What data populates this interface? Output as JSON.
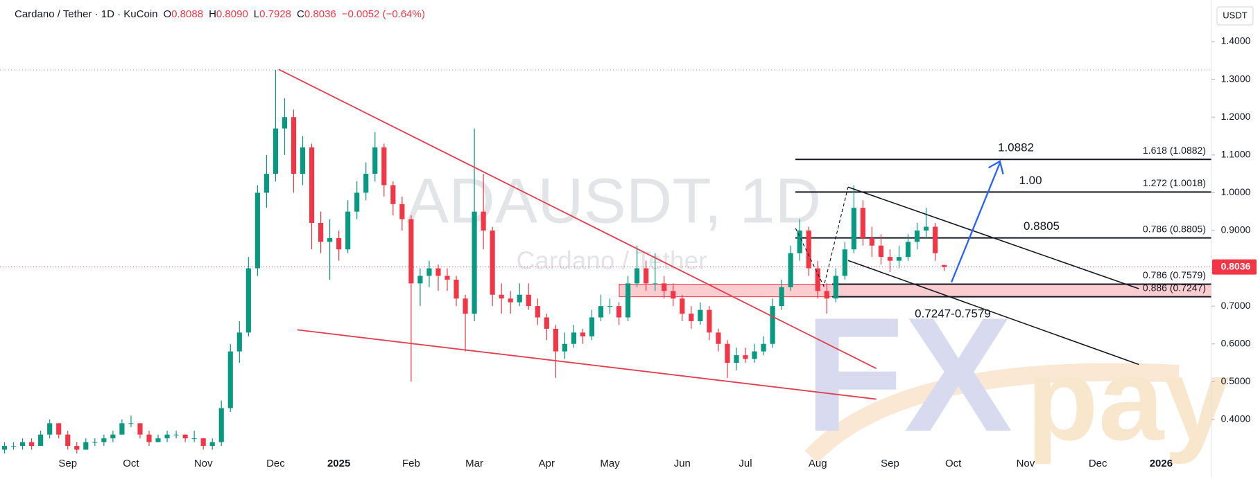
{
  "header": {
    "symbol": "Cardano / Tether · 1D · KuCoin",
    "ohlc": [
      {
        "key": "O",
        "value": "0.8088"
      },
      {
        "key": "H",
        "value": "0.8090"
      },
      {
        "key": "L",
        "value": "0.7928"
      },
      {
        "key": "C",
        "value": "0.8036"
      }
    ],
    "change": "−0.0052 (−0.64%)"
  },
  "chart_data": {
    "type": "candlestick",
    "currency": "USDT",
    "watermark": {
      "title": "ADAUSDT, 1D",
      "subtitle": "Cardano / Tether"
    },
    "logo": {
      "fx": "FX",
      "pay": "pay"
    },
    "up_color": "#089981",
    "down_color": "#f23645",
    "ylim": [
      0.31,
      1.51
    ],
    "yticks": [
      {
        "value": 0.4,
        "label": "0.4000"
      },
      {
        "value": 0.5,
        "label": "0.5000"
      },
      {
        "value": 0.6,
        "label": "0.6000"
      },
      {
        "value": 0.7,
        "label": "0.7000"
      },
      {
        "value": 0.8,
        "label": "0.8000"
      },
      {
        "value": 0.9,
        "label": "0.9000"
      },
      {
        "value": 1.0,
        "label": "1.0000"
      },
      {
        "value": 1.1,
        "label": "1.1000"
      },
      {
        "value": 1.2,
        "label": "1.2000"
      },
      {
        "value": 1.3,
        "label": "1.3000"
      },
      {
        "value": 1.4,
        "label": "1.4000"
      }
    ],
    "last_price": {
      "value": 0.8036,
      "label": "0.8036"
    },
    "fib_levels": [
      {
        "value": 1.0882,
        "label": "1.618 (1.0882)"
      },
      {
        "value": 1.0018,
        "label": "1.272 (1.0018)"
      },
      {
        "value": 0.8805,
        "label": "0.786 (0.8805)"
      },
      {
        "value": 0.7579,
        "label": "0.786 (0.7579)"
      },
      {
        "value": 0.7247,
        "label": "0.886 (0.7247)"
      }
    ],
    "targets": [
      {
        "value": 1.0882,
        "label": "1.0882"
      },
      {
        "value": 1.0018,
        "label": "1.00"
      },
      {
        "value": 0.8805,
        "label": "0.8805"
      }
    ],
    "zone_label": "0.7247-0.7579",
    "categories": [
      null,
      null,
      null,
      null,
      null,
      null,
      null,
      "Sep",
      null,
      null,
      null,
      null,
      null,
      null,
      "Oct",
      null,
      null,
      null,
      null,
      null,
      null,
      null,
      "Nov",
      null,
      null,
      null,
      null,
      null,
      null,
      null,
      "Dec",
      null,
      null,
      null,
      null,
      null,
      null,
      "2025",
      null,
      null,
      null,
      null,
      null,
      null,
      null,
      "Feb",
      null,
      null,
      null,
      null,
      null,
      null,
      "Mar",
      null,
      null,
      null,
      null,
      null,
      null,
      null,
      "Apr",
      null,
      null,
      null,
      null,
      null,
      null,
      "May",
      null,
      null,
      null,
      null,
      null,
      null,
      null,
      "Jun",
      null,
      null,
      null,
      null,
      null,
      null,
      "Jul",
      null,
      null,
      null,
      null,
      null,
      null,
      null,
      "Aug",
      null,
      null,
      null,
      null,
      null,
      null,
      null,
      "Sep",
      null,
      null,
      null,
      null,
      null,
      null,
      "Oct",
      null,
      null,
      null,
      null,
      null,
      null,
      null,
      "Nov",
      null,
      null,
      null,
      null,
      null,
      null,
      null,
      "Dec",
      null,
      null,
      null,
      null,
      null,
      null,
      "2026",
      null,
      null,
      null
    ],
    "open": [
      0.32,
      0.33,
      0.33,
      0.34,
      0.33,
      0.36,
      0.39,
      0.36,
      0.33,
      0.32,
      0.34,
      0.34,
      0.35,
      0.36,
      0.39,
      0.39,
      0.36,
      0.34,
      0.35,
      0.36,
      0.36,
      0.35,
      0.35,
      0.33,
      0.34,
      0.43,
      0.58,
      0.63,
      0.8,
      1.0,
      1.05,
      1.17,
      1.2,
      1.05,
      1.12,
      0.92,
      0.87,
      0.88,
      0.85,
      0.95,
      1.0,
      1.05,
      1.12,
      1.02,
      0.97,
      0.93,
      0.76,
      0.78,
      0.8,
      0.78,
      0.77,
      0.72,
      0.68,
      0.95,
      0.9,
      0.73,
      0.72,
      0.71,
      0.73,
      0.7,
      0.67,
      0.64,
      0.58,
      0.6,
      0.63,
      0.62,
      0.67,
      0.7,
      0.7,
      0.67,
      0.76,
      0.8,
      0.76,
      0.76,
      0.74,
      0.72,
      0.68,
      0.66,
      0.69,
      0.63,
      0.6,
      0.55,
      0.57,
      0.56,
      0.58,
      0.6,
      0.7,
      0.75,
      0.84,
      0.9,
      0.8,
      0.74,
      0.72,
      0.78,
      0.85,
      0.96,
      0.88,
      0.86,
      0.83,
      0.82,
      0.83,
      0.87,
      0.9,
      0.91,
      0.8088,
      null,
      null,
      null,
      null,
      null,
      null,
      null,
      null,
      null,
      null,
      null,
      null,
      null,
      null,
      null,
      null,
      null,
      null,
      null,
      null,
      null,
      null,
      null,
      null,
      null,
      null,
      null
    ],
    "high": [
      0.34,
      0.34,
      0.35,
      0.35,
      0.37,
      0.4,
      0.39,
      0.37,
      0.34,
      0.35,
      0.35,
      0.36,
      0.37,
      0.4,
      0.41,
      0.39,
      0.37,
      0.36,
      0.37,
      0.37,
      0.36,
      0.37,
      0.35,
      0.35,
      0.45,
      0.6,
      0.66,
      0.83,
      1.02,
      1.1,
      1.325,
      1.25,
      1.22,
      1.15,
      1.13,
      0.95,
      0.93,
      0.9,
      0.98,
      1.03,
      1.08,
      1.16,
      1.13,
      1.03,
      0.99,
      0.94,
      0.8,
      0.82,
      0.81,
      0.8,
      0.78,
      0.73,
      1.17,
      1.05,
      0.91,
      0.76,
      0.74,
      0.76,
      0.76,
      0.72,
      0.68,
      0.65,
      0.63,
      0.65,
      0.64,
      0.69,
      0.73,
      0.72,
      0.71,
      0.78,
      0.86,
      0.82,
      0.84,
      0.78,
      0.76,
      0.73,
      0.7,
      0.71,
      0.7,
      0.64,
      0.61,
      0.59,
      0.59,
      0.6,
      0.62,
      0.72,
      0.77,
      0.86,
      0.93,
      0.91,
      0.82,
      0.76,
      0.8,
      0.87,
      1.02,
      0.98,
      0.91,
      0.89,
      0.85,
      0.86,
      0.89,
      0.92,
      0.96,
      0.92,
      0.809,
      null,
      null,
      null,
      null,
      null,
      null,
      null,
      null,
      null,
      null,
      null,
      null,
      null,
      null,
      null,
      null,
      null,
      null,
      null,
      null,
      null,
      null,
      null,
      null,
      null,
      null,
      null
    ],
    "low": [
      0.31,
      0.32,
      0.32,
      0.32,
      0.33,
      0.35,
      0.35,
      0.32,
      0.31,
      0.32,
      0.33,
      0.33,
      0.34,
      0.36,
      0.38,
      0.35,
      0.33,
      0.34,
      0.34,
      0.35,
      0.34,
      0.34,
      0.32,
      0.32,
      0.33,
      0.42,
      0.55,
      0.62,
      0.78,
      0.96,
      1.03,
      1.1,
      1.0,
      1.02,
      0.85,
      0.84,
      0.77,
      0.82,
      0.84,
      0.93,
      0.98,
      1.03,
      0.99,
      0.94,
      0.9,
      0.5,
      0.7,
      0.75,
      0.74,
      0.74,
      0.7,
      0.58,
      0.66,
      0.85,
      0.7,
      0.68,
      0.68,
      0.7,
      0.69,
      0.65,
      0.61,
      0.51,
      0.56,
      0.59,
      0.6,
      0.61,
      0.66,
      0.68,
      0.65,
      0.66,
      0.75,
      0.74,
      0.74,
      0.72,
      0.7,
      0.66,
      0.64,
      0.65,
      0.61,
      0.58,
      0.51,
      0.53,
      0.55,
      0.55,
      0.57,
      0.59,
      0.69,
      0.74,
      0.82,
      0.78,
      0.72,
      0.68,
      0.71,
      0.77,
      0.84,
      0.86,
      0.83,
      0.81,
      0.79,
      0.8,
      0.82,
      0.85,
      0.88,
      0.82,
      0.7928,
      null,
      null,
      null,
      null,
      null,
      null,
      null,
      null,
      null,
      null,
      null,
      null,
      null,
      null,
      null,
      null,
      null,
      null,
      null,
      null,
      null,
      null,
      null,
      null,
      null,
      null,
      null
    ],
    "close": [
      0.33,
      0.33,
      0.34,
      0.33,
      0.36,
      0.39,
      0.36,
      0.33,
      0.32,
      0.34,
      0.34,
      0.35,
      0.36,
      0.39,
      0.39,
      0.36,
      0.34,
      0.35,
      0.36,
      0.36,
      0.35,
      0.35,
      0.33,
      0.34,
      0.43,
      0.58,
      0.63,
      0.8,
      1.0,
      1.05,
      1.17,
      1.2,
      1.05,
      1.12,
      0.92,
      0.87,
      0.88,
      0.85,
      0.95,
      1.0,
      1.05,
      1.12,
      1.02,
      0.97,
      0.93,
      0.76,
      0.78,
      0.8,
      0.78,
      0.77,
      0.72,
      0.68,
      0.95,
      0.9,
      0.73,
      0.72,
      0.71,
      0.73,
      0.7,
      0.67,
      0.64,
      0.58,
      0.6,
      0.63,
      0.62,
      0.67,
      0.7,
      0.7,
      0.67,
      0.76,
      0.8,
      0.76,
      0.76,
      0.74,
      0.72,
      0.68,
      0.66,
      0.69,
      0.63,
      0.6,
      0.55,
      0.57,
      0.56,
      0.58,
      0.6,
      0.7,
      0.75,
      0.84,
      0.9,
      0.8,
      0.74,
      0.72,
      0.78,
      0.85,
      0.96,
      0.88,
      0.86,
      0.83,
      0.82,
      0.83,
      0.87,
      0.9,
      0.91,
      0.84,
      0.8036,
      null,
      null,
      null,
      null,
      null,
      null,
      null,
      null,
      null,
      null,
      null,
      null,
      null,
      null,
      null,
      null,
      null,
      null,
      null,
      null,
      null,
      null,
      null,
      null,
      null,
      null,
      null
    ]
  }
}
